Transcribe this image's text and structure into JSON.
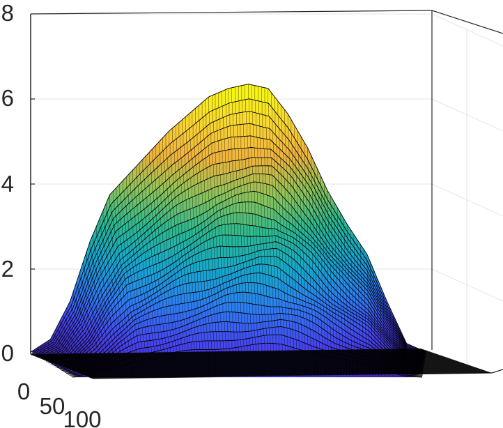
{
  "chart_data": {
    "type": "surface",
    "title": "",
    "xlabel": "",
    "ylabel": "",
    "zlabel": "",
    "zlim": [
      0,
      8
    ],
    "z_ticks": [
      "0",
      "2",
      "4",
      "6",
      "8"
    ],
    "y_ticks": [
      "0",
      "50",
      "100"
    ],
    "grid": true,
    "colormap": "parula",
    "colormap_colors": [
      "#3e26a8",
      "#4743f0",
      "#2e7cf3",
      "#16a8cf",
      "#2ab990",
      "#8dc459",
      "#f1b33d",
      "#f9d831",
      "#f9fb0e"
    ],
    "surface_profile": {
      "description_free": true,
      "depth_slices": 28,
      "peak_height_approx": 6.4,
      "profile_points": [
        [
          0,
          0.0
        ],
        [
          5,
          0.3
        ],
        [
          10,
          1.2
        ],
        [
          15,
          2.6
        ],
        [
          20,
          3.7
        ],
        [
          25,
          4.2
        ],
        [
          30,
          4.7
        ],
        [
          35,
          5.2
        ],
        [
          40,
          5.6
        ],
        [
          45,
          6.0
        ],
        [
          50,
          6.2
        ],
        [
          55,
          6.3
        ],
        [
          60,
          6.2
        ],
        [
          65,
          5.6
        ],
        [
          70,
          4.8
        ],
        [
          75,
          3.8
        ],
        [
          80,
          3.0
        ],
        [
          85,
          2.3
        ],
        [
          90,
          1.2
        ],
        [
          95,
          0.2
        ],
        [
          100,
          0.0
        ]
      ]
    },
    "colors": {
      "axis": "#262626",
      "grid": "#e6e6e6",
      "edge": "#000000",
      "floor": "#000000"
    }
  }
}
